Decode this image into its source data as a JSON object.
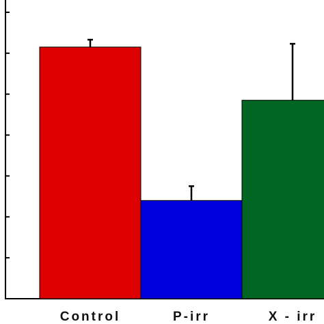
{
  "chart_data": {
    "type": "bar",
    "categories": [
      "Control",
      "P-irr",
      "X - irr"
    ],
    "values": [
      6.15,
      2.4,
      4.85
    ],
    "errors": [
      0.18,
      0.35,
      1.38
    ],
    "colors": [
      "#dd0000",
      "#0000dd",
      "#006622"
    ],
    "ylim": [
      0,
      7.3
    ],
    "yticks": [
      0,
      1,
      2,
      3,
      4,
      5,
      6,
      7
    ],
    "ytick_labels_visible": false,
    "grid": false,
    "legend": "none",
    "title": "",
    "xlabel": "",
    "ylabel": ""
  }
}
